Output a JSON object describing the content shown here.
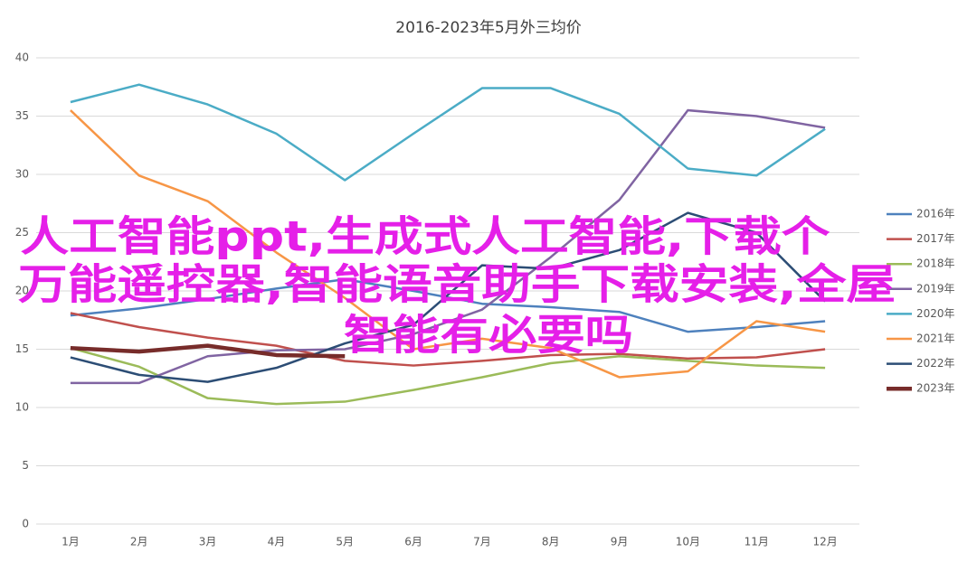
{
  "chart_data": {
    "type": "line",
    "title": "2016-2023年5月外三均价",
    "categories": [
      "1月",
      "2月",
      "3月",
      "4月",
      "5月",
      "6月",
      "7月",
      "8月",
      "9月",
      "10月",
      "11月",
      "12月"
    ],
    "series": [
      {
        "name": "2016年",
        "color": "#4e81bd",
        "values": [
          17.9,
          18.5,
          19.3,
          20.2,
          21.0,
          20.0,
          18.9,
          18.6,
          18.2,
          16.5,
          16.9,
          17.4
        ]
      },
      {
        "name": "2017年",
        "color": "#c0504d",
        "values": [
          18.1,
          16.9,
          16.0,
          15.3,
          14.0,
          13.6,
          14.0,
          14.5,
          14.6,
          14.2,
          14.3,
          15.0
        ]
      },
      {
        "name": "2018年",
        "color": "#9bbb59",
        "values": [
          15.1,
          13.5,
          10.8,
          10.3,
          10.5,
          11.5,
          12.6,
          13.8,
          14.4,
          14.0,
          13.6,
          13.4
        ]
      },
      {
        "name": "2019年",
        "color": "#8064a2",
        "values": [
          12.1,
          12.1,
          14.4,
          14.9,
          15.0,
          16.3,
          18.4,
          22.9,
          27.8,
          35.5,
          35.0,
          34.0
        ]
      },
      {
        "name": "2020年",
        "color": "#4bacc6",
        "values": [
          36.2,
          37.7,
          36.0,
          33.5,
          29.5,
          33.5,
          37.4,
          37.4,
          35.2,
          30.5,
          29.9,
          33.9
        ]
      },
      {
        "name": "2021年",
        "color": "#f79646",
        "values": [
          35.5,
          29.9,
          27.7,
          23.3,
          19.4,
          15.0,
          15.9,
          15.1,
          12.6,
          13.1,
          17.4,
          16.5
        ]
      },
      {
        "name": "2022年",
        "color": "#2c4d75",
        "values": [
          14.3,
          12.8,
          12.2,
          13.4,
          15.5,
          17.1,
          22.2,
          21.9,
          23.5,
          26.7,
          25.0,
          19.1
        ]
      },
      {
        "name": "2023年",
        "color": "#772c2a",
        "values": [
          15.1,
          14.8,
          15.3,
          14.5,
          14.4,
          null,
          null,
          null,
          null,
          null,
          null,
          null
        ]
      }
    ],
    "ylim": [
      0,
      40
    ],
    "yticks": [
      0,
      5,
      10,
      15,
      20,
      25,
      30,
      35,
      40
    ],
    "grid": true,
    "legend": "right",
    "overlay_text": [
      "人工智能ppt,生成式人工智能,下载个",
      "万能遥控器,智能语音助手下载安装,全屋",
      "智能有必要吗"
    ]
  }
}
